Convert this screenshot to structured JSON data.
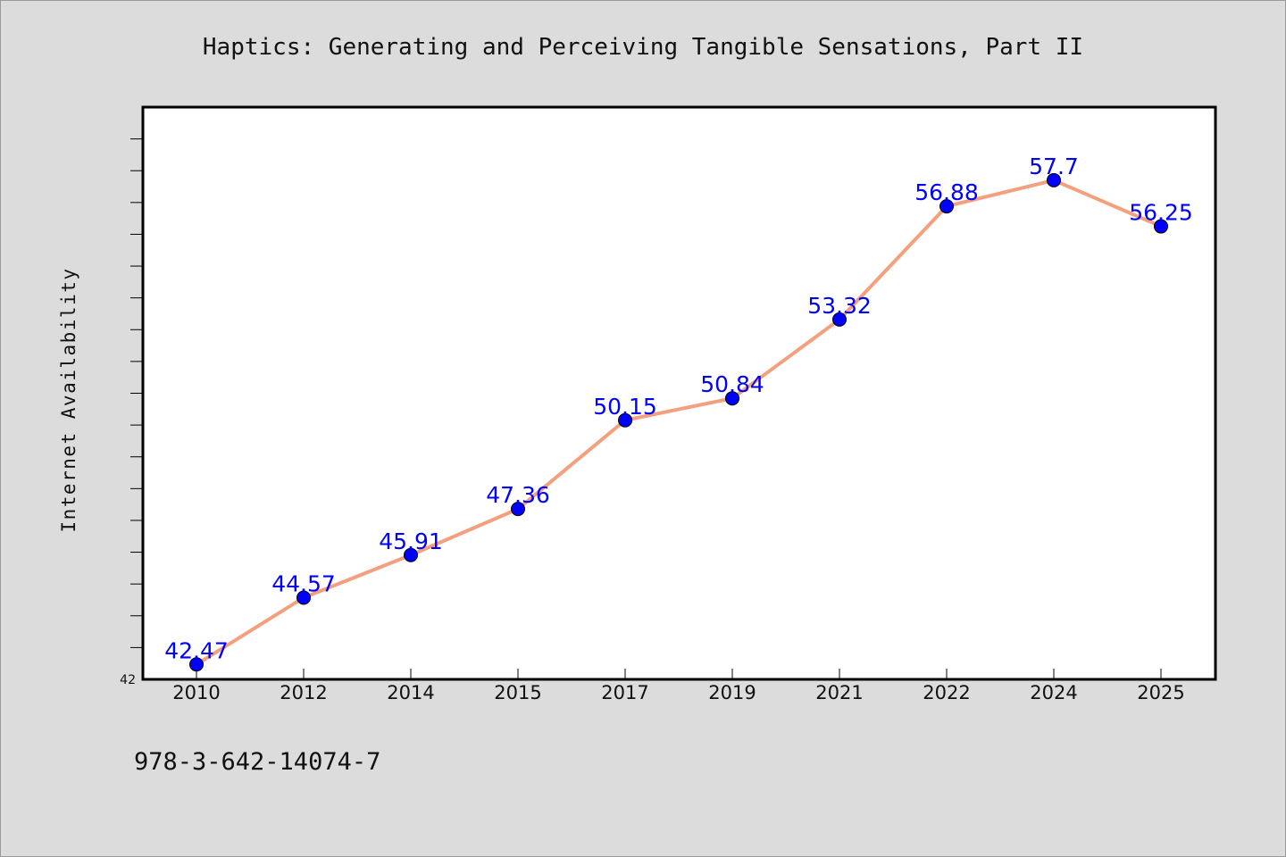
{
  "chart_data": {
    "type": "line",
    "title": "Haptics: Generating and Perceiving Tangible Sensations, Part II",
    "xlabel": "",
    "ylabel": "Internet Availability",
    "categories": [
      "2010",
      "2012",
      "2014",
      "2015",
      "2017",
      "2019",
      "2021",
      "2022",
      "2024",
      "2025"
    ],
    "series": [
      {
        "values": [
          42.47,
          44.57,
          45.91,
          47.36,
          50.15,
          50.84,
          53.32,
          56.88,
          57.7,
          56.25
        ],
        "data_labels": [
          "42.47",
          "44.57",
          "45.91",
          "47.36",
          "50.15",
          "50.84",
          "53.32",
          "56.88",
          "57.7",
          "56.25"
        ]
      }
    ],
    "ylim": [
      42,
      60
    ],
    "ytick_labels": [
      "42"
    ],
    "grid": false,
    "legend": "none",
    "line_color": "#f4a07e",
    "marker_color": "#0000ff",
    "label_color": "#0000ff"
  },
  "footer": {
    "isbn": "978-3-642-14074-7"
  },
  "colors": {
    "background": "#dcdcdc",
    "plot_background": "#ffffff"
  }
}
